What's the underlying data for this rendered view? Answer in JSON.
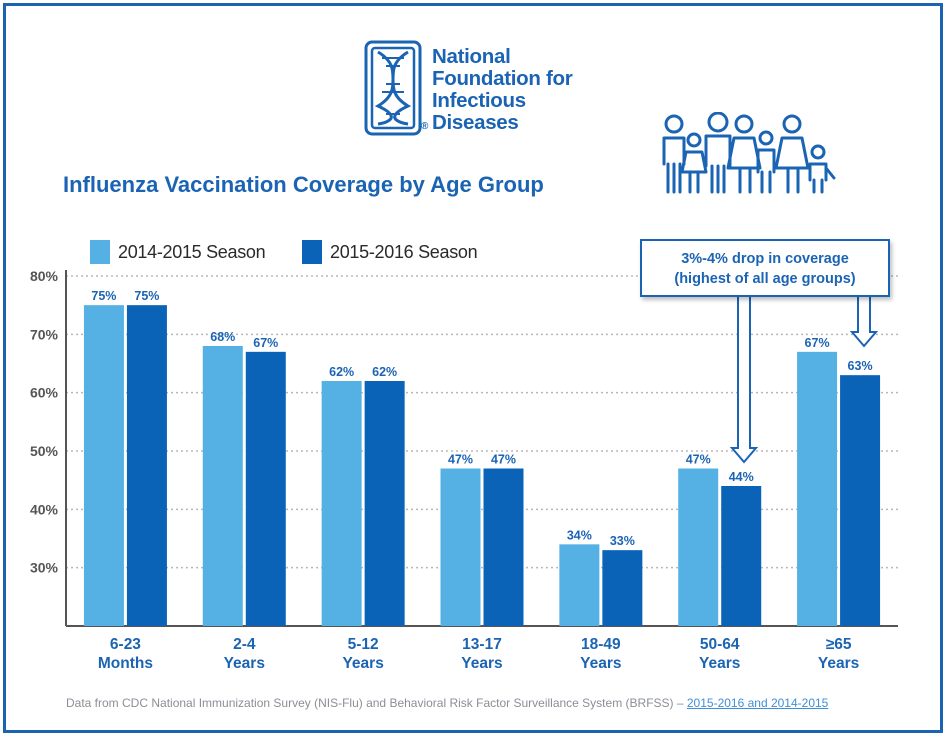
{
  "header": {
    "org_lines": [
      "National",
      "Foundation for",
      "Infectious",
      "Diseases"
    ],
    "registered_mark": "®"
  },
  "colors": {
    "brand": "#1b64b4",
    "season_2014": "#55b1e4",
    "season_2015": "#0a63b7",
    "grid": "#b8b8b8",
    "axis_text": "#555555",
    "category_text": "#1b64b4"
  },
  "icons": {
    "logo": "dna-helix-logo-icon",
    "family": "family-icon"
  },
  "callout": {
    "line1": "3%‑4% drop in coverage",
    "line2": "(highest of all age groups)"
  },
  "source": {
    "text": "Data from CDC National Immunization Survey (NIS-Flu) and Behavioral Risk Factor Surveillance System (BRFSS) – ",
    "link_text": "2015-2016 and 2014-2015"
  },
  "chart_data": {
    "type": "bar",
    "title": "Influenza Vaccination Coverage by Age Group",
    "xlabel": "",
    "ylabel": "",
    "ylim": [
      20,
      80
    ],
    "yticks": [
      30,
      40,
      50,
      60,
      70,
      80
    ],
    "ytick_labels": [
      "30%",
      "40%",
      "50%",
      "60%",
      "70%",
      "80%"
    ],
    "grid": true,
    "legend_position": "top-left",
    "categories": [
      [
        "6-23",
        "Months"
      ],
      [
        "2-4",
        "Years"
      ],
      [
        "5-12",
        "Years"
      ],
      [
        "13-17",
        "Years"
      ],
      [
        "18-49",
        "Years"
      ],
      [
        "50-64",
        "Years"
      ],
      [
        "≥65",
        "Years"
      ]
    ],
    "series": [
      {
        "name": "2014-2015 Season",
        "values": [
          75,
          68,
          62,
          47,
          34,
          47,
          67
        ],
        "labels": [
          "75%",
          "68%",
          "62%",
          "47%",
          "34%",
          "47%",
          "67%"
        ]
      },
      {
        "name": "2015-2016 Season",
        "values": [
          75,
          67,
          62,
          47,
          33,
          44,
          63
        ],
        "labels": [
          "75%",
          "67%",
          "62%",
          "47%",
          "33%",
          "44%",
          "63%"
        ]
      }
    ]
  }
}
